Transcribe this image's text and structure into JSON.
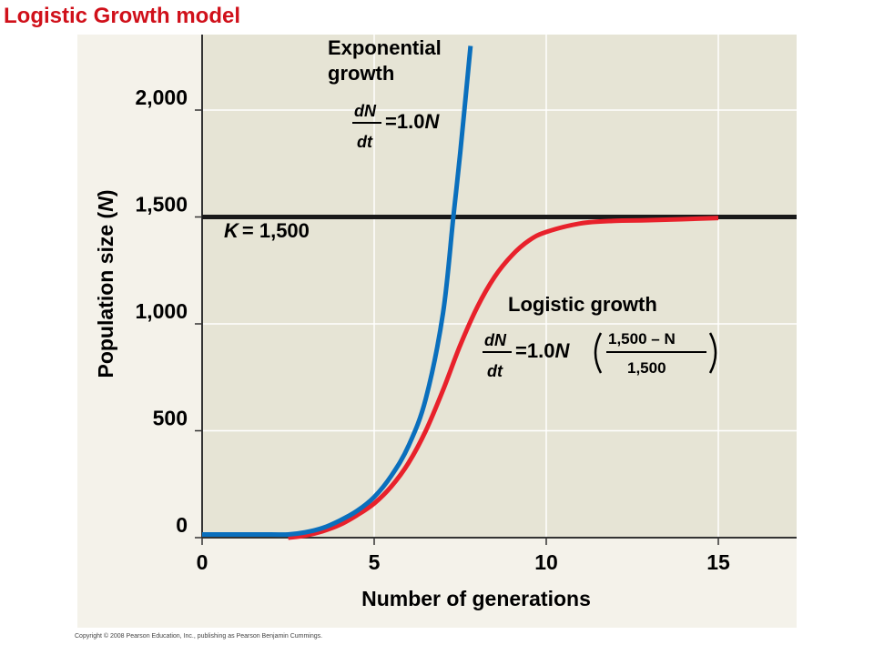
{
  "page_title": "Logistic Growth model",
  "copyright": "Copyright © 2008 Pearson Education, Inc., publishing as Pearson Benjamin Cummings.",
  "colors": {
    "exponential": "#0a6fbd",
    "logistic": "#e8212b",
    "carrying_capacity": "#1a1a1a",
    "plot_bg": "#e6e4d5",
    "panel_bg": "#f4f2ea",
    "title": "#d0101a"
  },
  "chart_data": {
    "type": "line",
    "xlabel": "Number of generations",
    "ylabel_prefix": "Population size (",
    "ylabel_var": "N",
    "ylabel_suffix": ")",
    "xlim": [
      0,
      17.3
    ],
    "ylim": [
      0,
      2350
    ],
    "xticks": [
      0,
      5,
      10,
      15
    ],
    "xtick_labels": [
      "0",
      "5",
      "10",
      "15"
    ],
    "yticks": [
      0,
      500,
      1000,
      1500,
      2000
    ],
    "ytick_labels": [
      "0",
      "500",
      "1,000",
      "1,500",
      "2,000"
    ],
    "grid": true,
    "series": [
      {
        "name": "Exponential growth",
        "color": "#0a6fbd",
        "x": [
          0,
          1,
          2,
          2.5,
          3,
          3.5,
          4,
          4.5,
          5,
          5.5,
          6,
          6.5,
          7,
          7.3,
          7.5,
          7.8
        ],
        "y": [
          15,
          15,
          15,
          15,
          25,
          45,
          80,
          125,
          190,
          290,
          430,
          650,
          1050,
          1500,
          1800,
          2300
        ]
      },
      {
        "name": "Logistic growth",
        "color": "#e8212b",
        "x": [
          2.5,
          3,
          3.5,
          4,
          4.5,
          5,
          5.5,
          6,
          6.5,
          7,
          7.5,
          8,
          8.5,
          9,
          9.5,
          10,
          11,
          12,
          13,
          15
        ],
        "y": [
          0,
          10,
          30,
          60,
          105,
          160,
          240,
          350,
          500,
          690,
          900,
          1080,
          1220,
          1320,
          1390,
          1430,
          1470,
          1482,
          1485,
          1495
        ]
      }
    ],
    "hline": {
      "y": 1500,
      "label_var": "K",
      "label_value": "= 1,500"
    },
    "annotations": {
      "exponential_label_1": "Exponential",
      "exponential_label_2": "growth",
      "exp_eq_num": "dN",
      "exp_eq_den": "dt",
      "exp_eq_rhs": "=1.0",
      "exp_eq_var": "N",
      "logistic_label": "Logistic growth",
      "log_eq_num": "dN",
      "log_eq_den": "dt",
      "log_eq_rhs": "=1.0",
      "log_eq_var": "N",
      "log_frac_num": "1,500 – N",
      "log_frac_den": "1,500"
    }
  }
}
